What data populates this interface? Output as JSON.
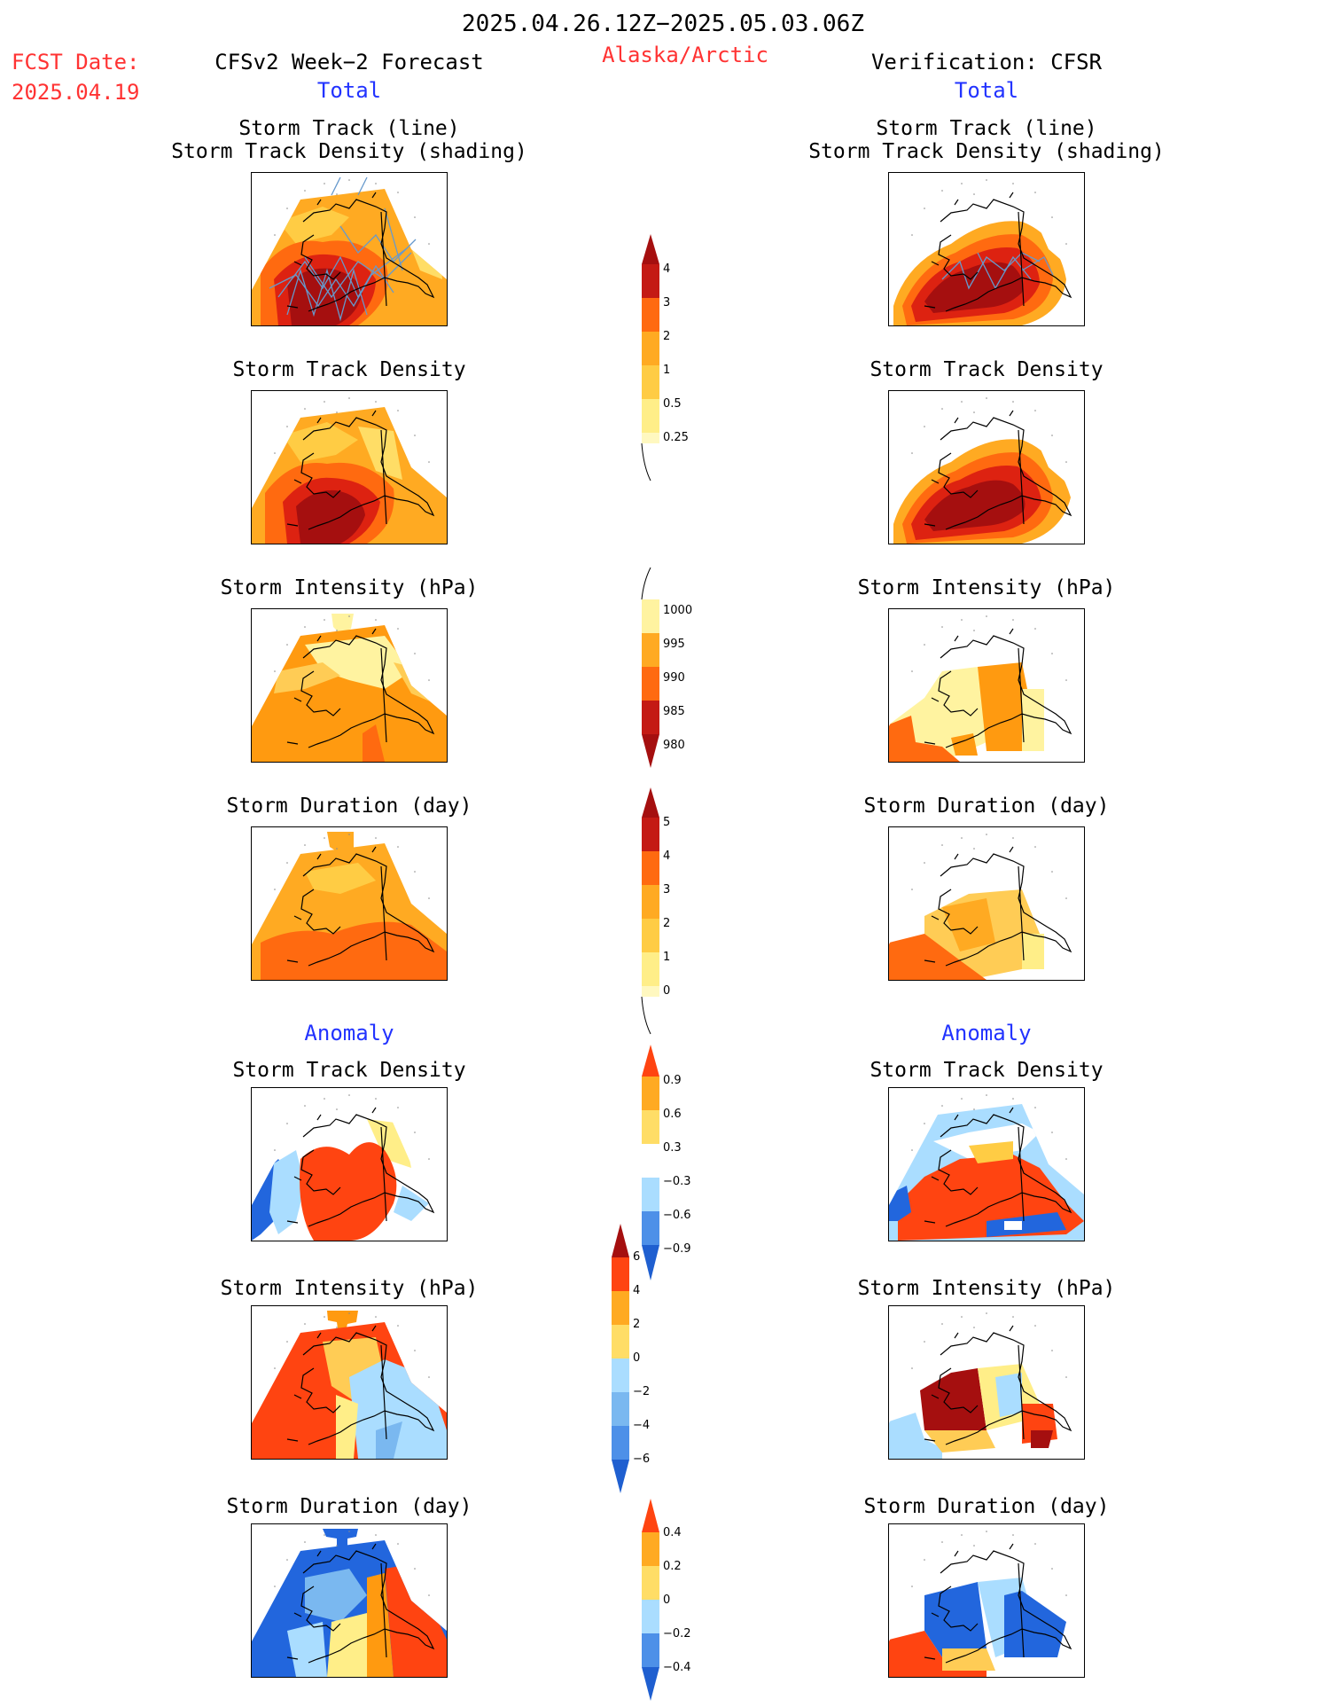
{
  "header": {
    "date_range": "2025.04.26.12Z−2025.05.03.06Z",
    "fcst_label": "FCST Date:",
    "fcst_date": "2025.04.19",
    "left_title": "CFSv2 Week−2 Forecast",
    "region": "Alaska/Arctic",
    "right_title": "Verification: CFSR",
    "total_left": "Total",
    "total_right": "Total",
    "anomaly_left": "Anomaly",
    "anomaly_right": "Anomaly"
  },
  "panels": {
    "track_title_1": "Storm Track (line)",
    "track_title_2": "Storm Track Density (shading)",
    "density": "Storm Track Density",
    "intensity": "Storm Intensity (hPa)",
    "duration": "Storm Duration (day)"
  },
  "colorbars": {
    "density": [
      "4",
      "3",
      "2",
      "1",
      "0.5",
      "0.25"
    ],
    "intensity": [
      "1000",
      "995",
      "990",
      "985",
      "980"
    ],
    "duration": [
      "5",
      "4",
      "3",
      "2",
      "1",
      "0"
    ],
    "anom_density": [
      "0.9",
      "0.6",
      "0.3",
      "−0.3",
      "−0.6",
      "−0.9"
    ],
    "anom_intensity": [
      "6",
      "4",
      "2",
      "0",
      "−2",
      "−4",
      "−6"
    ],
    "anom_duration": [
      "0.4",
      "0.2",
      "0",
      "−0.2",
      "−0.4"
    ]
  },
  "colors": {
    "red_text": "#ff3333",
    "blue_text": "#2233ff",
    "track_line": "#6699cc"
  }
}
